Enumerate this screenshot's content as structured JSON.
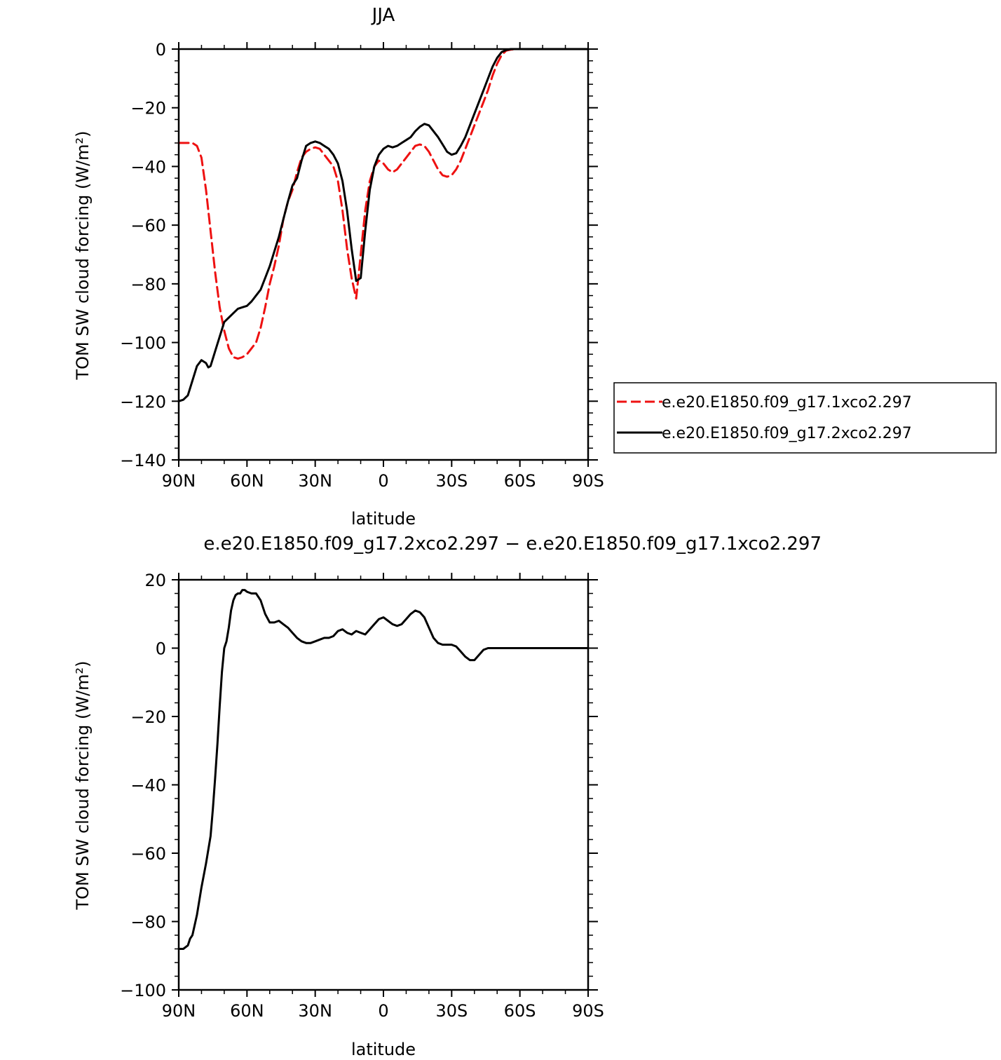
{
  "chart_data": [
    {
      "type": "line",
      "title": "JJA",
      "xlabel": "latitude",
      "ylabel": "TOM SW cloud forcing (W/m²)",
      "xlim": [
        90,
        -90
      ],
      "ylim": [
        -140,
        0
      ],
      "x_ticks": [
        90,
        60,
        30,
        0,
        -30,
        -60,
        -90
      ],
      "x_tick_labels": [
        "90N",
        "60N",
        "30N",
        "0",
        "30S",
        "60S",
        "90S"
      ],
      "y_ticks": [
        0,
        -20,
        -40,
        -60,
        -80,
        -100,
        -120,
        -140
      ],
      "y_tick_labels": [
        "0",
        "−20",
        "−40",
        "−60",
        "−80",
        "−100",
        "−120",
        "−140"
      ],
      "legend_position": "right",
      "series": [
        {
          "name": "e.e20.E1850.f09_g17.1xco2.297",
          "color": "#ee1111",
          "dash": "dashed",
          "x": [
            90,
            84,
            82,
            80,
            78,
            76,
            74,
            72,
            70,
            68,
            66,
            64,
            62,
            60,
            58,
            56,
            54,
            52,
            50,
            48,
            46,
            44,
            42,
            40,
            38,
            36,
            34,
            32,
            30,
            28,
            26,
            24,
            22,
            20,
            18,
            16,
            14,
            12,
            10,
            8,
            6,
            4,
            2,
            0,
            -2,
            -4,
            -6,
            -8,
            -10,
            -12,
            -14,
            -16,
            -18,
            -20,
            -22,
            -24,
            -26,
            -28,
            -30,
            -32,
            -34,
            -36,
            -38,
            -40,
            -42,
            -44,
            -46,
            -48,
            -50,
            -52,
            -54,
            -56,
            -58,
            -60,
            -62,
            -64,
            -66,
            -68,
            -70,
            -72,
            -76,
            -80,
            -90
          ],
          "y": [
            -32,
            -32,
            -33,
            -37,
            -48,
            -62,
            -76,
            -88,
            -96,
            -102,
            -105,
            -105.5,
            -105,
            -104,
            -102,
            -100,
            -95,
            -88,
            -80,
            -74,
            -67,
            -58,
            -52,
            -48,
            -42,
            -37,
            -35,
            -34,
            -33.5,
            -34,
            -36,
            -38,
            -40,
            -45,
            -55,
            -68,
            -78,
            -85,
            -70,
            -55,
            -45,
            -40,
            -38,
            -39,
            -41,
            -42,
            -41,
            -39,
            -37,
            -35,
            -33,
            -32.5,
            -33,
            -35,
            -38,
            -41,
            -43,
            -43.5,
            -43,
            -41,
            -38,
            -34,
            -30,
            -26,
            -22,
            -18,
            -14,
            -9,
            -5,
            -2,
            -0.5,
            -0.2,
            0,
            0,
            0,
            0,
            0,
            0,
            0,
            0,
            0,
            0,
            0
          ]
        },
        {
          "name": "e.e20.E1850.f09_g17.2xco2.297",
          "color": "#000000",
          "dash": "solid",
          "x": [
            90,
            88,
            86,
            84,
            82,
            80,
            78,
            77,
            76,
            74,
            72,
            70,
            68,
            66,
            64,
            62,
            60,
            58,
            56,
            54,
            52,
            50,
            48,
            46,
            44,
            42,
            40,
            38,
            36,
            34,
            32,
            30,
            28,
            26,
            24,
            22,
            20,
            18,
            16,
            14,
            12,
            10,
            8,
            6,
            4,
            2,
            0,
            -2,
            -4,
            -6,
            -8,
            -10,
            -12,
            -14,
            -16,
            -18,
            -20,
            -22,
            -24,
            -26,
            -28,
            -30,
            -32,
            -34,
            -36,
            -38,
            -40,
            -42,
            -44,
            -46,
            -48,
            -50,
            -52,
            -54,
            -56,
            -58,
            -60,
            -62,
            -64,
            -66,
            -68,
            -70,
            -72,
            -76,
            -80,
            -90
          ],
          "y": [
            -120,
            -119.5,
            -118,
            -113,
            -108,
            -106,
            -107,
            -108.5,
            -108,
            -103,
            -98,
            -93,
            -91.5,
            -90,
            -88.5,
            -88,
            -87.5,
            -86,
            -84,
            -82,
            -78,
            -74,
            -69,
            -64,
            -58,
            -52,
            -46.5,
            -44,
            -38,
            -33,
            -32,
            -31.5,
            -32,
            -33,
            -34,
            -36,
            -39,
            -45,
            -55,
            -68,
            -79,
            -78,
            -62,
            -48,
            -40,
            -36,
            -34,
            -33,
            -33.5,
            -33,
            -32,
            -31,
            -30,
            -28,
            -26.5,
            -25.5,
            -26,
            -28,
            -30,
            -32.5,
            -35,
            -36,
            -35.5,
            -33,
            -30,
            -26,
            -22,
            -18,
            -14,
            -10,
            -6,
            -3,
            -1,
            -0.3,
            0,
            0,
            0,
            0,
            0,
            0,
            0,
            0,
            0,
            0,
            0,
            0
          ]
        }
      ]
    },
    {
      "type": "line",
      "title": "e.e20.E1850.f09_g17.2xco2.297 − e.e20.E1850.f09_g17.1xco2.297",
      "xlabel": "latitude",
      "ylabel": "TOM SW cloud forcing (W/m²)",
      "xlim": [
        90,
        -90
      ],
      "ylim": [
        -100,
        20
      ],
      "x_ticks": [
        90,
        60,
        30,
        0,
        -30,
        -60,
        -90
      ],
      "x_tick_labels": [
        "90N",
        "60N",
        "30N",
        "0",
        "30S",
        "60S",
        "90S"
      ],
      "y_ticks": [
        20,
        0,
        -20,
        -40,
        -60,
        -80,
        -100
      ],
      "y_tick_labels": [
        "20",
        "0",
        "−20",
        "−40",
        "−60",
        "−80",
        "−100"
      ],
      "series": [
        {
          "color": "#000000",
          "dash": "solid",
          "x": [
            90,
            88,
            86,
            85,
            84,
            82,
            80,
            78,
            76,
            75,
            74,
            73,
            72,
            71,
            70,
            69,
            68,
            67,
            66,
            65,
            64,
            63,
            62,
            61,
            60,
            58,
            56,
            54,
            52,
            50,
            48,
            46,
            44,
            42,
            40,
            38,
            36,
            34,
            32,
            30,
            28,
            26,
            24,
            22,
            20,
            18,
            16,
            14,
            12,
            10,
            8,
            6,
            4,
            2,
            0,
            -2,
            -4,
            -6,
            -8,
            -10,
            -12,
            -14,
            -16,
            -18,
            -20,
            -22,
            -24,
            -26,
            -28,
            -30,
            -32,
            -34,
            -36,
            -38,
            -40,
            -42,
            -44,
            -46,
            -48,
            -50,
            -52,
            -54,
            -56,
            -58,
            -60,
            -62,
            -64,
            -66,
            -68,
            -70,
            -72,
            -76,
            -80,
            -90
          ],
          "y": [
            -88,
            -88,
            -87,
            -85,
            -84,
            -78,
            -70,
            -63,
            -55,
            -47,
            -38,
            -28,
            -17,
            -7,
            0,
            2,
            6,
            11,
            14,
            15.5,
            16,
            16,
            17,
            17,
            16.5,
            16,
            16,
            14,
            10,
            7.5,
            7.5,
            8,
            7,
            6,
            4.5,
            3,
            2,
            1.5,
            1.5,
            2,
            2.5,
            3,
            3,
            3.5,
            5,
            5.5,
            4.5,
            4,
            5,
            4.5,
            4,
            5.5,
            7,
            8.5,
            9,
            8,
            7,
            6.5,
            7,
            8.5,
            10,
            11,
            10.5,
            9,
            6,
            3,
            1.5,
            1,
            1,
            1,
            0.5,
            -1,
            -2.5,
            -3.5,
            -3.5,
            -2,
            -0.5,
            0,
            0,
            0,
            0,
            0,
            0,
            0,
            0,
            0,
            0,
            0,
            0,
            0,
            0,
            0,
            0,
            0
          ]
        }
      ]
    }
  ]
}
